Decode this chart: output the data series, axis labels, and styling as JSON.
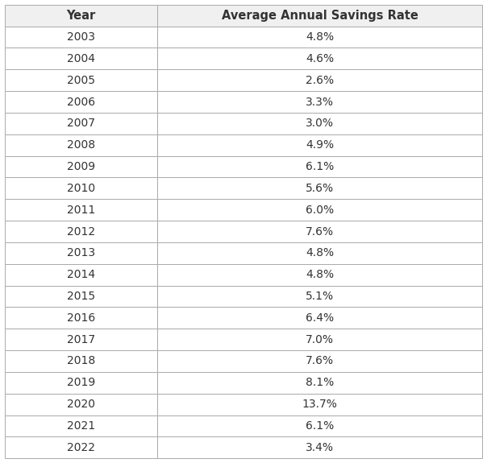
{
  "headers": [
    "Year",
    "Average Annual Savings Rate"
  ],
  "rows": [
    [
      "2003",
      "4.8%"
    ],
    [
      "2004",
      "4.6%"
    ],
    [
      "2005",
      "2.6%"
    ],
    [
      "2006",
      "3.3%"
    ],
    [
      "2007",
      "3.0%"
    ],
    [
      "2008",
      "4.9%"
    ],
    [
      "2009",
      "6.1%"
    ],
    [
      "2010",
      "5.6%"
    ],
    [
      "2011",
      "6.0%"
    ],
    [
      "2012",
      "7.6%"
    ],
    [
      "2013",
      "4.8%"
    ],
    [
      "2014",
      "4.8%"
    ],
    [
      "2015",
      "5.1%"
    ],
    [
      "2016",
      "6.4%"
    ],
    [
      "2017",
      "7.0%"
    ],
    [
      "2018",
      "7.6%"
    ],
    [
      "2019",
      "8.1%"
    ],
    [
      "2020",
      "13.7%"
    ],
    [
      "2021",
      "6.1%"
    ],
    [
      "2022",
      "3.4%"
    ]
  ],
  "header_bg_color": "#f0f0f0",
  "row_bg_color": "#ffffff",
  "border_color": "#aaaaaa",
  "header_font_size": 10.5,
  "row_font_size": 10,
  "text_color": "#333333",
  "col_split": 0.32,
  "fig_width": 6.04,
  "fig_height": 5.75,
  "dpi": 100
}
